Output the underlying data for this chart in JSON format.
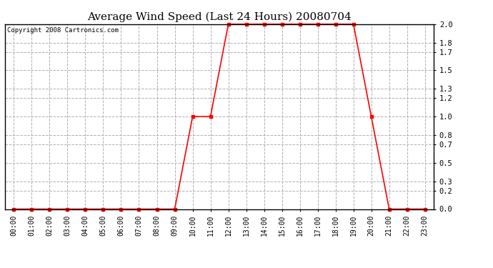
{
  "title": "Average Wind Speed (Last 24 Hours) 20080704",
  "copyright_text": "Copyright 2008 Cartronics.com",
  "hours": [
    0,
    1,
    2,
    3,
    4,
    5,
    6,
    7,
    8,
    9,
    10,
    11,
    12,
    13,
    14,
    15,
    16,
    17,
    18,
    19,
    20,
    21,
    22,
    23
  ],
  "values": [
    0.0,
    0.0,
    0.0,
    0.0,
    0.0,
    0.0,
    0.0,
    0.0,
    0.0,
    0.0,
    1.0,
    1.0,
    2.0,
    2.0,
    2.0,
    2.0,
    2.0,
    2.0,
    2.0,
    2.0,
    1.0,
    0.0,
    0.0,
    0.0
  ],
  "x_labels": [
    "00:00",
    "01:00",
    "02:00",
    "03:00",
    "04:00",
    "05:00",
    "06:00",
    "07:00",
    "08:00",
    "09:00",
    "10:00",
    "11:00",
    "12:00",
    "13:00",
    "14:00",
    "15:00",
    "16:00",
    "17:00",
    "18:00",
    "19:00",
    "20:00",
    "21:00",
    "22:00",
    "23:00"
  ],
  "y_ticks": [
    0.0,
    0.2,
    0.3,
    0.5,
    0.7,
    0.8,
    1.0,
    1.2,
    1.3,
    1.5,
    1.7,
    1.8,
    2.0
  ],
  "line_color": "red",
  "marker": "s",
  "marker_size": 2.5,
  "bg_color": "#ffffff",
  "plot_bg_color": "#ffffff",
  "grid_color": "#b0b0b0",
  "grid_style": "--",
  "ylim": [
    0.0,
    2.0
  ],
  "title_fontsize": 11,
  "copyright_fontsize": 6.5,
  "tick_fontsize": 7,
  "ytick_fontsize": 7.5
}
